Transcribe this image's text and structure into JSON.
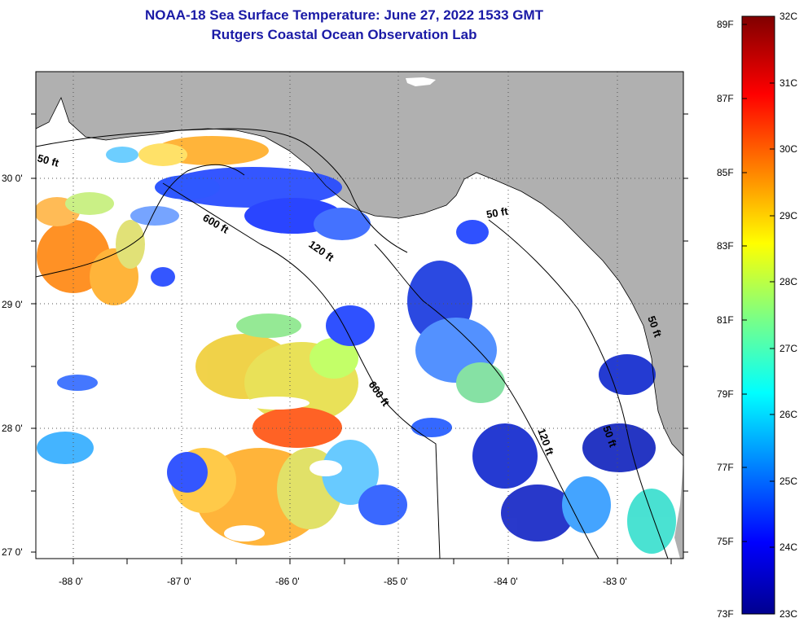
{
  "title": {
    "line1": "NOAA-18 Sea Surface Temperature:  June 27, 2022 1533 GMT",
    "line2": "Rutgers Coastal Ocean Observation Lab"
  },
  "lat_labels": [
    "30 0'",
    "29 0'",
    "28 0'",
    "27 0'"
  ],
  "lon_labels": [
    "-88 0'",
    "-87 0'",
    "-86 0'",
    "-85 0'",
    "-84 0'",
    "-83 0'"
  ],
  "contour_labels": [
    "50 ft",
    "600 ft",
    "120 ft",
    "600 ft",
    "50 ft",
    "120 ft",
    "50 ft",
    "50 ft"
  ],
  "colorbar": {
    "fahrenheit": [
      "89F",
      "87F",
      "85F",
      "83F",
      "81F",
      "79F",
      "77F",
      "75F",
      "73F"
    ],
    "celsius": [
      "32C",
      "31C",
      "30C",
      "29C",
      "28C",
      "27C",
      "26C",
      "25C",
      "24C",
      "23C"
    ]
  },
  "colors": {
    "land": "#b0b0b0",
    "title": "#1a1aa6"
  }
}
